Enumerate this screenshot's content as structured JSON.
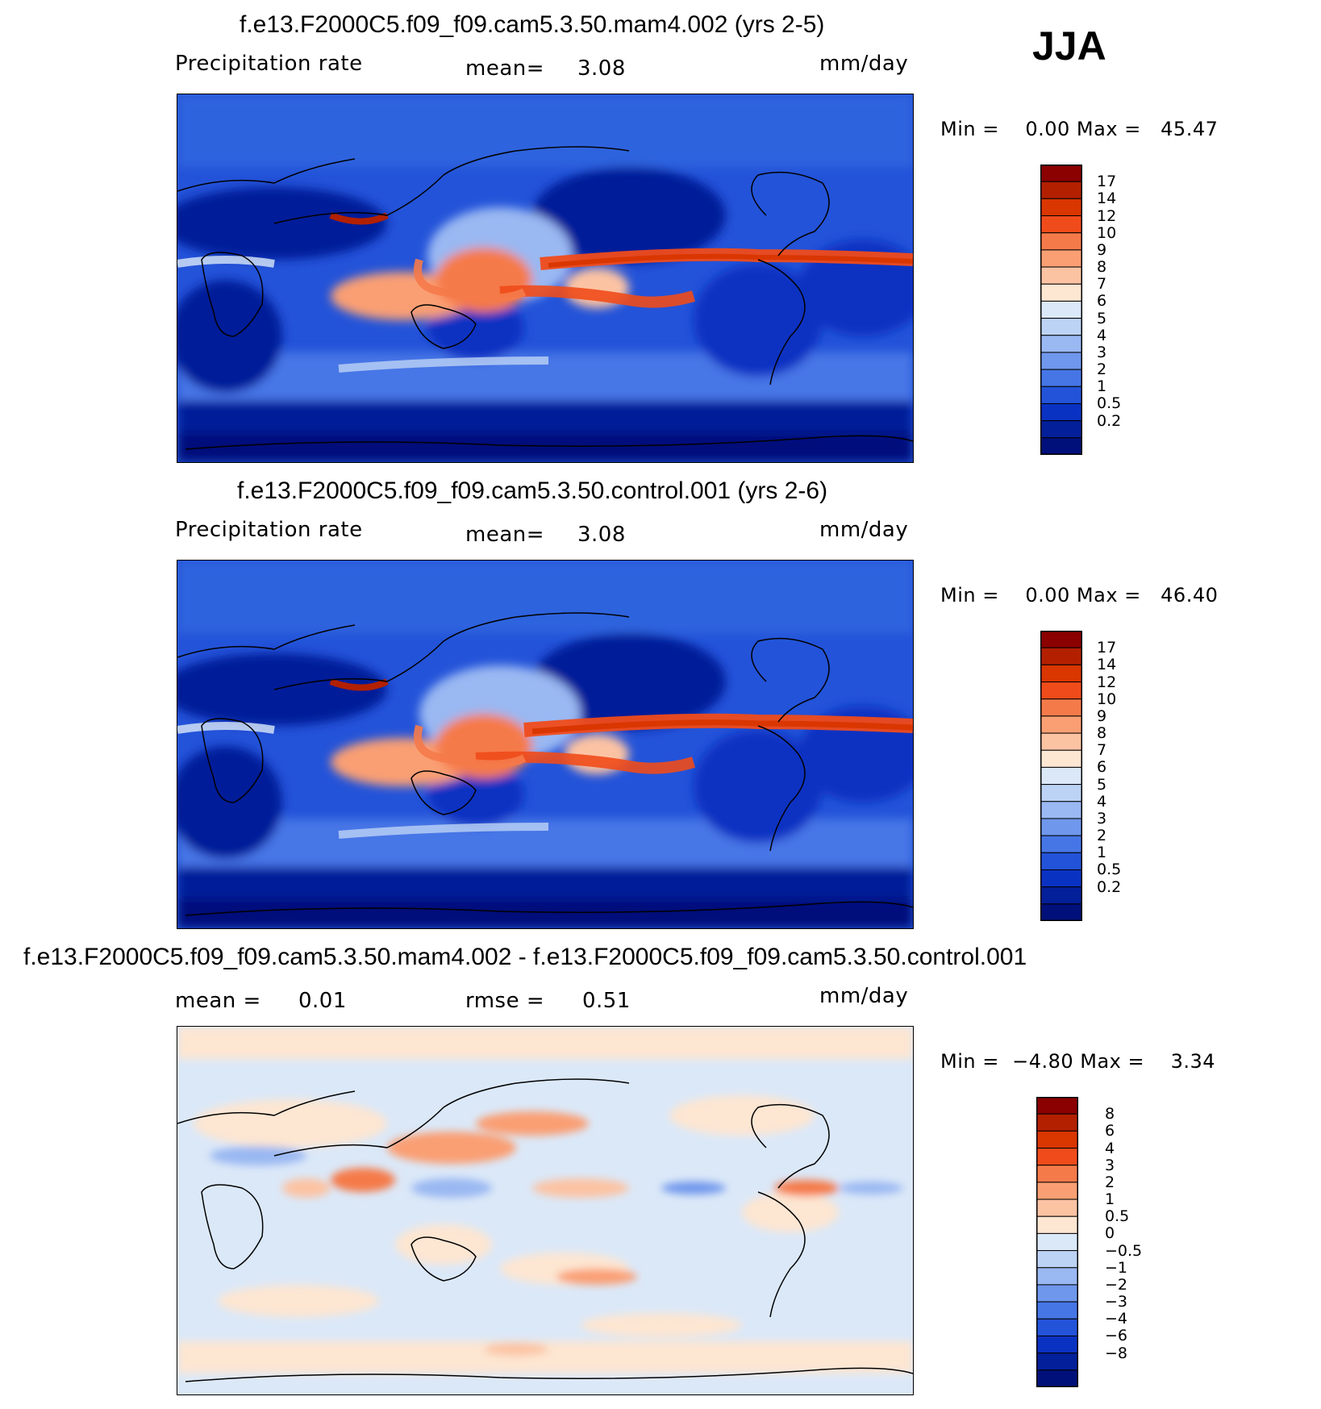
{
  "season": "JJA",
  "panels": [
    {
      "title": "f.e13.F2000C5.f09_f09.cam5.3.50.mam4.002 (yrs 2-5)",
      "variable": "Precipitation rate",
      "stat1": "mean=",
      "stat1_value": "3.08",
      "units": "mm/day",
      "minmax": "Min =    0.00 Max =   45.47",
      "colorbar_labels": [
        "17",
        "14",
        "12",
        "10",
        "9",
        "8",
        "7",
        "6",
        "5",
        "4",
        "3",
        "2",
        "1",
        "0.5",
        "0.2"
      ],
      "colorbar_colors": [
        "#8b0000",
        "#b22000",
        "#d93600",
        "#f04b1a",
        "#f57a4a",
        "#fa9f73",
        "#fcc3a3",
        "#fde6d2",
        "#dbe8f8",
        "#bdd3f5",
        "#9ab8f2",
        "#6f97ec",
        "#4676e6",
        "#2353d9",
        "#0a32c2",
        "#031f99",
        "#00107a"
      ]
    },
    {
      "title": "f.e13.F2000C5.f09_f09.cam5.3.50.control.001 (yrs 2-6)",
      "variable": "Precipitation rate",
      "stat1": "mean=",
      "stat1_value": "3.08",
      "units": "mm/day",
      "minmax": "Min =    0.00 Max =   46.40",
      "colorbar_labels": [
        "17",
        "14",
        "12",
        "10",
        "9",
        "8",
        "7",
        "6",
        "5",
        "4",
        "3",
        "2",
        "1",
        "0.5",
        "0.2"
      ],
      "colorbar_colors": [
        "#8b0000",
        "#b22000",
        "#d93600",
        "#f04b1a",
        "#f57a4a",
        "#fa9f73",
        "#fcc3a3",
        "#fde6d2",
        "#dbe8f8",
        "#bdd3f5",
        "#9ab8f2",
        "#6f97ec",
        "#4676e6",
        "#2353d9",
        "#0a32c2",
        "#031f99",
        "#00107a"
      ]
    },
    {
      "title": "f.e13.F2000C5.f09_f09.cam5.3.50.mam4.002 - f.e13.F2000C5.f09_f09.cam5.3.50.control.001",
      "variable": "mean =",
      "variable_value": "0.01",
      "stat1": "rmse =",
      "stat1_value": "0.51",
      "units": "mm/day",
      "minmax": "Min =  −4.80 Max =    3.34",
      "colorbar_labels": [
        "8",
        "6",
        "4",
        "3",
        "2",
        "1",
        "0.5",
        "0",
        "−0.5",
        "−1",
        "−2",
        "−3",
        "−4",
        "−6",
        "−8"
      ],
      "colorbar_colors": [
        "#8b0000",
        "#b22000",
        "#d93600",
        "#f04b1a",
        "#f57a4a",
        "#fa9f73",
        "#fcc3a3",
        "#fde6d2",
        "#dbe8f8",
        "#bdd3f5",
        "#9ab8f2",
        "#6f97ec",
        "#4676e6",
        "#2353d9",
        "#0a32c2",
        "#031f99",
        "#00107a"
      ]
    }
  ]
}
